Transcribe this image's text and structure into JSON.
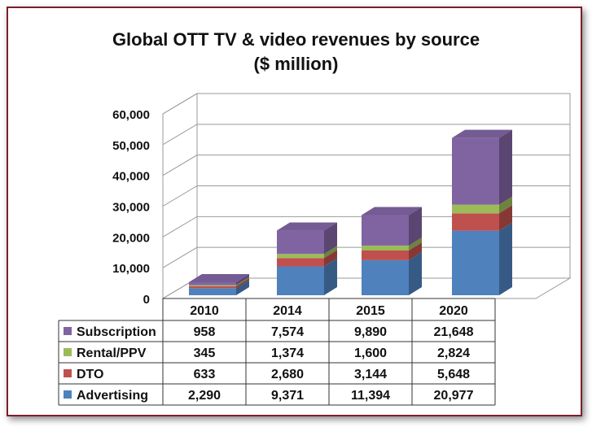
{
  "chart_data": {
    "type": "bar",
    "stacked": true,
    "three_d": true,
    "title": "Global OTT TV & video revenues by source",
    "subtitle": "($ million)",
    "categories": [
      "2010",
      "2014",
      "2015",
      "2020"
    ],
    "series": [
      {
        "name": "Advertising",
        "values": [
          2290,
          9371,
          11394,
          20977
        ],
        "display": [
          "2,290",
          "9,371",
          "11,394",
          "20,977"
        ],
        "color": "#4f81bd"
      },
      {
        "name": "DTO",
        "values": [
          633,
          2680,
          3144,
          5648
        ],
        "display": [
          "633",
          "2,680",
          "3,144",
          "5,648"
        ],
        "color": "#c0504d"
      },
      {
        "name": "Rental/PPV",
        "values": [
          345,
          1374,
          1600,
          2824
        ],
        "display": [
          "345",
          "1,374",
          "1,600",
          "2,824"
        ],
        "color": "#9bbb59"
      },
      {
        "name": "Subscription",
        "values": [
          958,
          7574,
          9890,
          21648
        ],
        "display": [
          "958",
          "7,574",
          "9,890",
          "21,648"
        ],
        "color": "#8064a2"
      }
    ],
    "ylim": [
      0,
      60000
    ],
    "yticks": [
      "0",
      "10,000",
      "20,000",
      "30,000",
      "40,000",
      "50,000",
      "60,000"
    ],
    "grid": true,
    "legend": "data-table"
  }
}
